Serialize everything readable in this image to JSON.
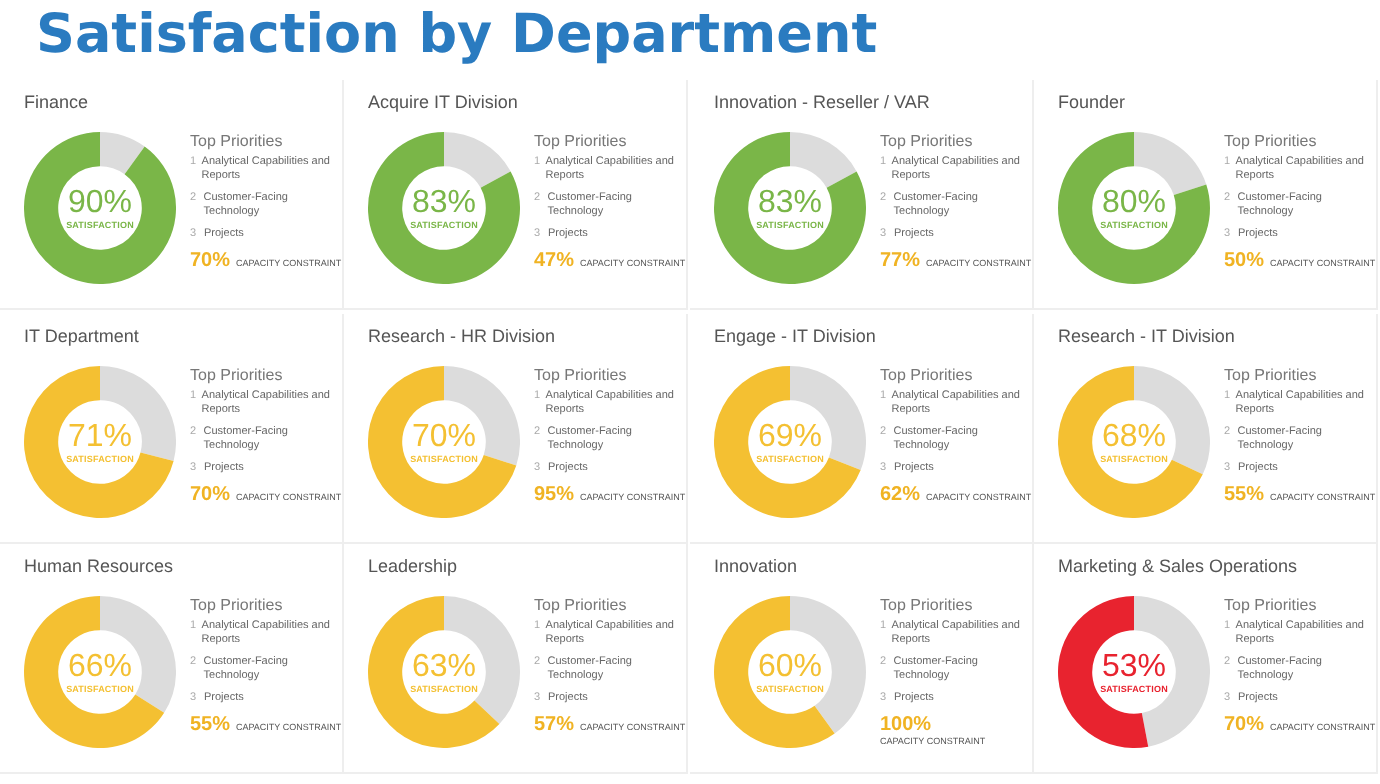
{
  "chart_data": [
    {
      "type": "other",
      "title": "Satisfaction by Department"
    },
    {
      "type": "donut",
      "subtitle": "Finance",
      "categories": [
        null,
        null
      ],
      "values": [
        10,
        90
      ],
      "colors": [
        "#dcdcdc",
        "#7ab648"
      ],
      "value_labels": [
        null,
        "90%"
      ],
      "annotations": [
        "SATISFACTION",
        "Top Priorities",
        "1",
        "Analytical Capabilities and Reports",
        "2",
        "Customer-Facing Technology",
        "3",
        "Projects",
        "70%",
        "CAPACITY CONSTRAINT"
      ]
    },
    {
      "type": "donut",
      "subtitle": "Acquire IT Division",
      "categories": [
        null,
        null
      ],
      "values": [
        17,
        83
      ],
      "colors": [
        "#dcdcdc",
        "#7ab648"
      ],
      "value_labels": [
        null,
        "83%"
      ],
      "annotations": [
        "SATISFACTION",
        "Top Priorities",
        "1",
        "Analytical Capabilities and Reports",
        "2",
        "Customer-Facing Technology",
        "3",
        "Projects",
        "47%",
        "CAPACITY CONSTRAINT"
      ]
    },
    {
      "type": "donut",
      "subtitle": "Innovation - Reseller / VAR",
      "categories": [
        null,
        null
      ],
      "values": [
        17,
        83
      ],
      "colors": [
        "#dcdcdc",
        "#7ab648"
      ],
      "value_labels": [
        null,
        "83%"
      ],
      "annotations": [
        "SATISFACTION",
        "Top Priorities",
        "1",
        "Analytical Capabilities and Reports",
        "2",
        "Customer-Facing Technology",
        "3",
        "Projects",
        "77%",
        "CAPACITY CONSTRAINT"
      ]
    },
    {
      "type": "donut",
      "subtitle": "Founder",
      "categories": [
        null,
        null
      ],
      "values": [
        20,
        80
      ],
      "colors": [
        "#dcdcdc",
        "#7ab648"
      ],
      "value_labels": [
        null,
        "80%"
      ],
      "annotations": [
        "SATISFACTION",
        "Top Priorities",
        "1",
        "Analytical Capabilities and Reports",
        "2",
        "Customer-Facing Technology",
        "3",
        "Projects",
        "50%",
        "CAPACITY CONSTRAINT"
      ]
    },
    {
      "type": "donut",
      "subtitle": "IT Department",
      "categories": [
        null,
        null
      ],
      "values": [
        29,
        71
      ],
      "colors": [
        "#dcdcdc",
        "#f4c032"
      ],
      "value_labels": [
        null,
        "71%"
      ],
      "annotations": [
        "SATISFACTION",
        "Top Priorities",
        "1",
        "Analytical Capabilities and Reports",
        "2",
        "Customer-Facing Technology",
        "3",
        "Projects",
        "70%",
        "CAPACITY CONSTRAINT"
      ]
    },
    {
      "type": "donut",
      "subtitle": "Research - HR Division",
      "categories": [
        null,
        null
      ],
      "values": [
        30,
        70
      ],
      "colors": [
        "#dcdcdc",
        "#f4c032"
      ],
      "value_labels": [
        null,
        "70%"
      ],
      "annotations": [
        "SATISFACTION",
        "Top Priorities",
        "1",
        "Analytical Capabilities and Reports",
        "2",
        "Customer-Facing Technology",
        "3",
        "Projects",
        "95%",
        "CAPACITY CONSTRAINT"
      ]
    },
    {
      "type": "donut",
      "subtitle": "Engage - IT Division",
      "categories": [
        null,
        null
      ],
      "values": [
        31,
        69
      ],
      "colors": [
        "#dcdcdc",
        "#f4c032"
      ],
      "value_labels": [
        null,
        "69%"
      ],
      "annotations": [
        "SATISFACTION",
        "Top Priorities",
        "1",
        "Analytical Capabilities and Reports",
        "2",
        "Customer-Facing Technology",
        "3",
        "Projects",
        "62%",
        "CAPACITY CONSTRAINT"
      ]
    },
    {
      "type": "donut",
      "subtitle": "Research - IT Division",
      "categories": [
        null,
        null
      ],
      "values": [
        32,
        68
      ],
      "colors": [
        "#dcdcdc",
        "#f4c032"
      ],
      "value_labels": [
        null,
        "68%"
      ],
      "annotations": [
        "SATISFACTION",
        "Top Priorities",
        "1",
        "Analytical Capabilities and Reports",
        "2",
        "Customer-Facing Technology",
        "3",
        "Projects",
        "55%",
        "CAPACITY CONSTRAINT"
      ]
    },
    {
      "type": "donut",
      "subtitle": "Human Resources",
      "categories": [
        null,
        null
      ],
      "values": [
        34,
        66
      ],
      "colors": [
        "#dcdcdc",
        "#f4c032"
      ],
      "value_labels": [
        null,
        "66%"
      ],
      "annotations": [
        "SATISFACTION",
        "Top Priorities",
        "1",
        "Analytical Capabilities and Reports",
        "2",
        "Customer-Facing Technology",
        "3",
        "Projects",
        "55%",
        "CAPACITY CONSTRAINT"
      ]
    },
    {
      "type": "donut",
      "subtitle": "Leadership",
      "categories": [
        null,
        null
      ],
      "values": [
        37,
        63
      ],
      "colors": [
        "#dcdcdc",
        "#f4c032"
      ],
      "value_labels": [
        null,
        "63%"
      ],
      "annotations": [
        "SATISFACTION",
        "Top Priorities",
        "1",
        "Analytical Capabilities and Reports",
        "2",
        "Customer-Facing Technology",
        "3",
        "Projects",
        "57%",
        "CAPACITY CONSTRAINT"
      ]
    },
    {
      "type": "donut",
      "subtitle": "Innovation",
      "categories": [
        null,
        null
      ],
      "values": [
        40,
        60
      ],
      "colors": [
        "#dcdcdc",
        "#f4c032"
      ],
      "value_labels": [
        null,
        "60%"
      ],
      "annotations": [
        "SATISFACTION",
        "Top Priorities",
        "1",
        "Analytical Capabilities and Reports",
        "2",
        "Customer-Facing Technology",
        "3",
        "Projects",
        "100%",
        "CAPACITY CONSTRAINT"
      ]
    },
    {
      "type": "donut",
      "subtitle": "Marketing & Sales Operations",
      "categories": [
        null,
        null
      ],
      "values": [
        47,
        53
      ],
      "colors": [
        "#dcdcdc",
        "#e8232f"
      ],
      "value_labels": [
        null,
        "53%"
      ],
      "annotations": [
        "SATISFACTION",
        "Top Priorities",
        "1",
        "Analytical Capabilities and Reports",
        "2",
        "Customer-Facing Technology",
        "3",
        "Projects",
        "70%",
        "CAPACITY CONSTRAINT"
      ]
    }
  ]
}
